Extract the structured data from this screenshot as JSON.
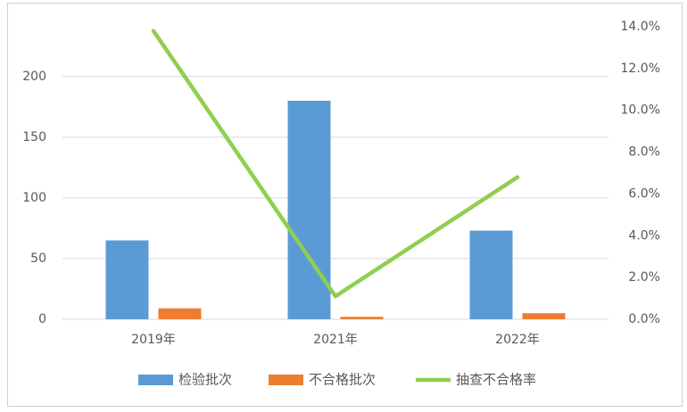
{
  "chart_data": {
    "type": "bar_line",
    "categories": [
      "2019年",
      "2021年",
      "2022年"
    ],
    "series": [
      {
        "name": "检验批次",
        "type": "bar",
        "color": "#5b9bd5",
        "values": [
          65,
          180,
          73
        ]
      },
      {
        "name": "不合格批次",
        "type": "bar",
        "color": "#ed7d31",
        "values": [
          9,
          2,
          5
        ]
      },
      {
        "name": "抽查不合格率",
        "type": "line",
        "axis": "y2",
        "color": "#8fcf4f",
        "values": [
          13.8,
          1.1,
          6.8
        ]
      }
    ],
    "ylim": [
      0,
      241
    ],
    "yticks": [
      0,
      50,
      100,
      150,
      200
    ],
    "y2lim": [
      0,
      14
    ],
    "y2ticks": [
      {
        "value": 0,
        "label": "0.0%"
      },
      {
        "value": 2,
        "label": "2.0%"
      },
      {
        "value": 4,
        "label": "4.0%"
      },
      {
        "value": 6,
        "label": "6.0%"
      },
      {
        "value": 8,
        "label": "8.0%"
      },
      {
        "value": 10,
        "label": "10.0%"
      },
      {
        "value": 12,
        "label": "12.0%"
      },
      {
        "value": 14,
        "label": "14.0%"
      }
    ],
    "grid": true
  }
}
